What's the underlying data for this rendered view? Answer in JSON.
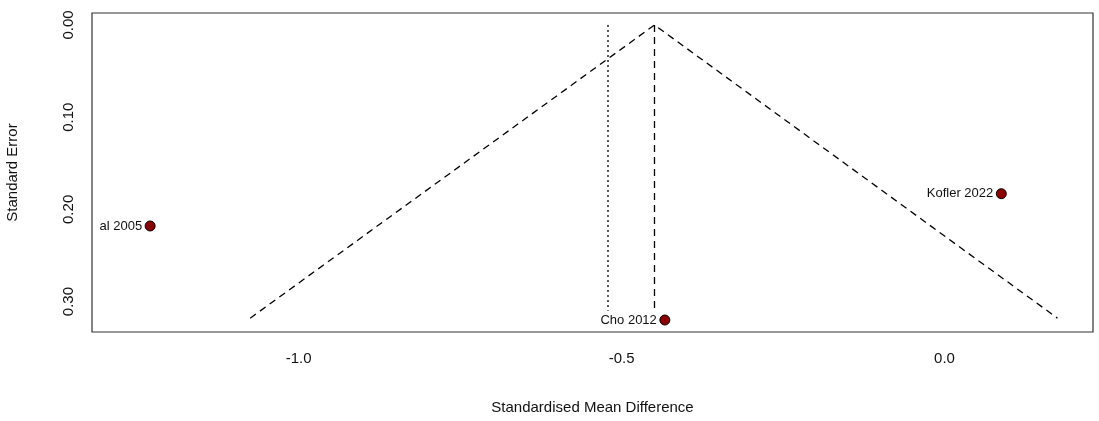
{
  "chart_data": {
    "type": "scatter",
    "xlabel": "Standardised Mean Difference",
    "ylabel": "Standard Error",
    "xlim": [
      -1.32,
      0.23
    ],
    "xticks": [
      {
        "value": -1,
        "label": "-1.0"
      },
      {
        "value": -0.5,
        "label": "-0.5"
      },
      {
        "value": 0,
        "label": "0.0"
      }
    ],
    "ylim": [
      0.333,
      -0.013
    ],
    "yticks": [
      {
        "value": 0,
        "label": "0.00"
      },
      {
        "value": 0.1,
        "label": "0.10"
      },
      {
        "value": 0.2,
        "label": "0.20"
      },
      {
        "value": 0.3,
        "label": "0.30"
      }
    ],
    "grid": false,
    "legend": false,
    "marker": "circle",
    "series": [
      {
        "color": "#8b0000",
        "x": [
          -1.23,
          -0.433,
          0.088
        ],
        "values": [
          0.218,
          0.32,
          0.183
        ]
      },
      {
        "type": "line",
        "color": "#000000",
        "line_style": "dashed",
        "marker": "none",
        "x": [
          -1.075,
          -0.449,
          0.175
        ],
        "values": [
          0.318,
          0,
          0.318
        ]
      },
      {
        "type": "line",
        "color": "#000000",
        "line_style": "dashed",
        "marker": "none",
        "x": [
          -0.449,
          -0.449
        ],
        "values": [
          0,
          0.31
        ]
      },
      {
        "type": "line",
        "color": "#000000",
        "line_style": "dotted",
        "marker": "none",
        "x": [
          -0.521,
          -0.521
        ],
        "values": [
          0,
          0.31
        ]
      }
    ],
    "annotations": [
      {
        "text": "al 2005",
        "x": -1.23,
        "y": 0.218
      },
      {
        "text": "Cho 2012",
        "x": -0.433,
        "y": 0.32
      },
      {
        "text": "Kofler 2022",
        "x": 0.088,
        "y": 0.183
      }
    ]
  }
}
